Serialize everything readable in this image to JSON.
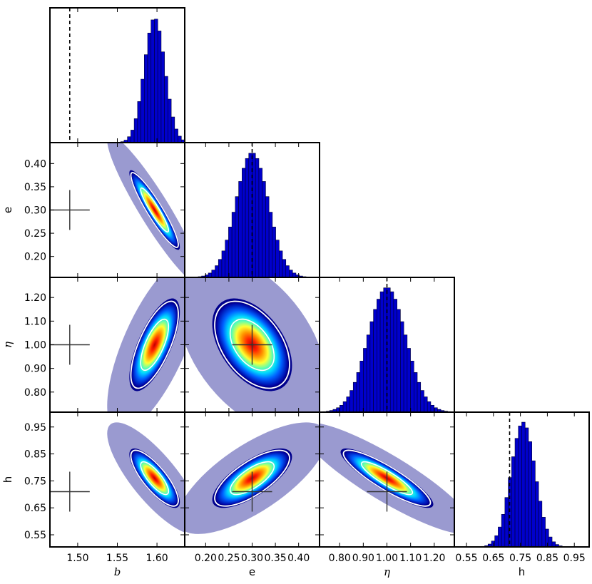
{
  "chart_data": {
    "type": "corner",
    "parameters": [
      {
        "id": "b",
        "label": "b",
        "italic": true,
        "ticks": [
          1.5,
          1.55,
          1.6
        ],
        "tick_labels": [
          "1.50",
          "1.55",
          "1.60"
        ],
        "range": [
          1.465,
          1.635
        ],
        "truth": 1.49,
        "posterior_mean": 1.597,
        "posterior_sd": 0.013
      },
      {
        "id": "e",
        "label": "e",
        "italic": false,
        "ticks": [
          0.2,
          0.25,
          0.3,
          0.35,
          0.4
        ],
        "tick_labels": [
          "0.20",
          "0.25",
          "0.30",
          "0.35",
          "0.40"
        ],
        "range": [
          0.155,
          0.445
        ],
        "truth": 0.3,
        "posterior_mean": 0.3,
        "posterior_sd": 0.035
      },
      {
        "id": "eta",
        "label": "η",
        "italic": true,
        "ticks": [
          0.8,
          0.9,
          1.0,
          1.1,
          1.2
        ],
        "tick_labels": [
          "0.80",
          "0.90",
          "1.00",
          "1.10",
          "1.20"
        ],
        "range": [
          0.715,
          1.285
        ],
        "truth": 1.0,
        "posterior_mean": 1.0,
        "posterior_sd": 0.08
      },
      {
        "id": "h",
        "label": "h",
        "italic": false,
        "ticks": [
          0.55,
          0.65,
          0.75,
          0.85,
          0.95
        ],
        "tick_labels": [
          "0.55",
          "0.65",
          "0.75",
          "0.85",
          "0.95"
        ],
        "range": [
          0.505,
          1.005
        ],
        "truth": 0.71,
        "posterior_mean": 0.76,
        "posterior_sd": 0.045
      }
    ],
    "correlations": {
      "b-e": -0.93,
      "b-eta": 0.7,
      "e-eta": -0.45,
      "b-h": -0.8,
      "e-h": 0.72,
      "eta-h": -0.88
    },
    "histogram_bins": 40,
    "colors": {
      "histogram_fill": "#0000cc",
      "histogram_edge": "#000033",
      "scatter_cloud": "#8888c8",
      "contour_line": "#ffffff",
      "truth_marker": "#333333",
      "colormap": [
        "#00007f",
        "#0000ff",
        "#007fff",
        "#00ffff",
        "#7fff7f",
        "#ffff00",
        "#ff7f00",
        "#ff0000"
      ]
    }
  }
}
